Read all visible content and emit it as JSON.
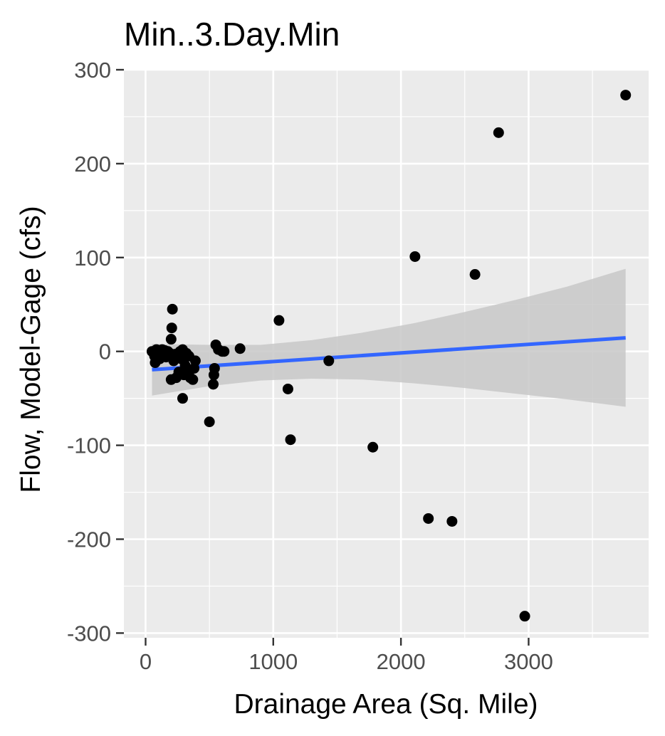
{
  "chart_data": {
    "type": "scatter",
    "title": "Min..3.Day.Min",
    "xlabel": "Drainage Area (Sq. Mile)",
    "ylabel": "Flow, Model-Gage (cfs)",
    "xlim": [
      -170,
      3940
    ],
    "ylim": [
      -305,
      300
    ],
    "xticks": [
      0,
      1000,
      2000,
      3000
    ],
    "yticks": [
      -300,
      -200,
      -100,
      0,
      100,
      200,
      300
    ],
    "x_tick_labels": [
      "0",
      "1000",
      "2000",
      "3000"
    ],
    "y_tick_labels": [
      "-300",
      "-200",
      "-100",
      "0",
      "100",
      "200",
      "300"
    ],
    "grid": true,
    "colors": {
      "panel": "#ebebeb",
      "grid": "#ffffff",
      "points": "#000000",
      "fit_line": "#3366ff",
      "ribbon": "#c8c8c8"
    },
    "points": [
      {
        "x": 50,
        "y": 0
      },
      {
        "x": 70,
        "y": -5
      },
      {
        "x": 75,
        "y": -12
      },
      {
        "x": 85,
        "y": 2
      },
      {
        "x": 95,
        "y": -2
      },
      {
        "x": 100,
        "y": 1
      },
      {
        "x": 110,
        "y": -8
      },
      {
        "x": 120,
        "y": 0
      },
      {
        "x": 125,
        "y": -3
      },
      {
        "x": 130,
        "y": 2
      },
      {
        "x": 140,
        "y": -4
      },
      {
        "x": 150,
        "y": 1
      },
      {
        "x": 160,
        "y": -6
      },
      {
        "x": 175,
        "y": 0
      },
      {
        "x": 190,
        "y": -2
      },
      {
        "x": 200,
        "y": 13
      },
      {
        "x": 205,
        "y": 25
      },
      {
        "x": 210,
        "y": 45
      },
      {
        "x": 200,
        "y": -30
      },
      {
        "x": 220,
        "y": -10
      },
      {
        "x": 230,
        "y": -3
      },
      {
        "x": 240,
        "y": -28
      },
      {
        "x": 250,
        "y": -5
      },
      {
        "x": 260,
        "y": -22
      },
      {
        "x": 270,
        "y": 0
      },
      {
        "x": 280,
        "y": -8
      },
      {
        "x": 290,
        "y": 2
      },
      {
        "x": 290,
        "y": -50
      },
      {
        "x": 300,
        "y": -25
      },
      {
        "x": 310,
        "y": -15
      },
      {
        "x": 320,
        "y": -2
      },
      {
        "x": 330,
        "y": -20
      },
      {
        "x": 340,
        "y": -5
      },
      {
        "x": 350,
        "y": -28
      },
      {
        "x": 370,
        "y": -30
      },
      {
        "x": 380,
        "y": -18
      },
      {
        "x": 390,
        "y": -10
      },
      {
        "x": 500,
        "y": -75
      },
      {
        "x": 530,
        "y": -35
      },
      {
        "x": 535,
        "y": -25
      },
      {
        "x": 540,
        "y": -18
      },
      {
        "x": 550,
        "y": 7
      },
      {
        "x": 570,
        "y": 2
      },
      {
        "x": 600,
        "y": 0
      },
      {
        "x": 615,
        "y": 0
      },
      {
        "x": 740,
        "y": 3
      },
      {
        "x": 1045,
        "y": 33
      },
      {
        "x": 1115,
        "y": -40
      },
      {
        "x": 1135,
        "y": -94
      },
      {
        "x": 1435,
        "y": -10
      },
      {
        "x": 1780,
        "y": -102
      },
      {
        "x": 2110,
        "y": 101
      },
      {
        "x": 2215,
        "y": -178
      },
      {
        "x": 2400,
        "y": -181
      },
      {
        "x": 2580,
        "y": 82
      },
      {
        "x": 2765,
        "y": 233
      },
      {
        "x": 2970,
        "y": -282
      },
      {
        "x": 3760,
        "y": 273
      }
    ],
    "smooth": {
      "method": "linear",
      "x_range": [
        50,
        3760
      ],
      "fit": [
        -19.5,
        14.5
      ],
      "ci": {
        "x": [
          50,
          500,
          900,
          1300,
          1700,
          2100,
          2500,
          2900,
          3300,
          3760
        ],
        "upper": [
          8,
          7,
          7,
          12,
          20,
          30,
          42,
          55,
          69,
          88
        ],
        "lower": [
          -47,
          -37,
          -31,
          -29,
          -30,
          -34,
          -39,
          -45,
          -51,
          -59
        ]
      }
    }
  }
}
